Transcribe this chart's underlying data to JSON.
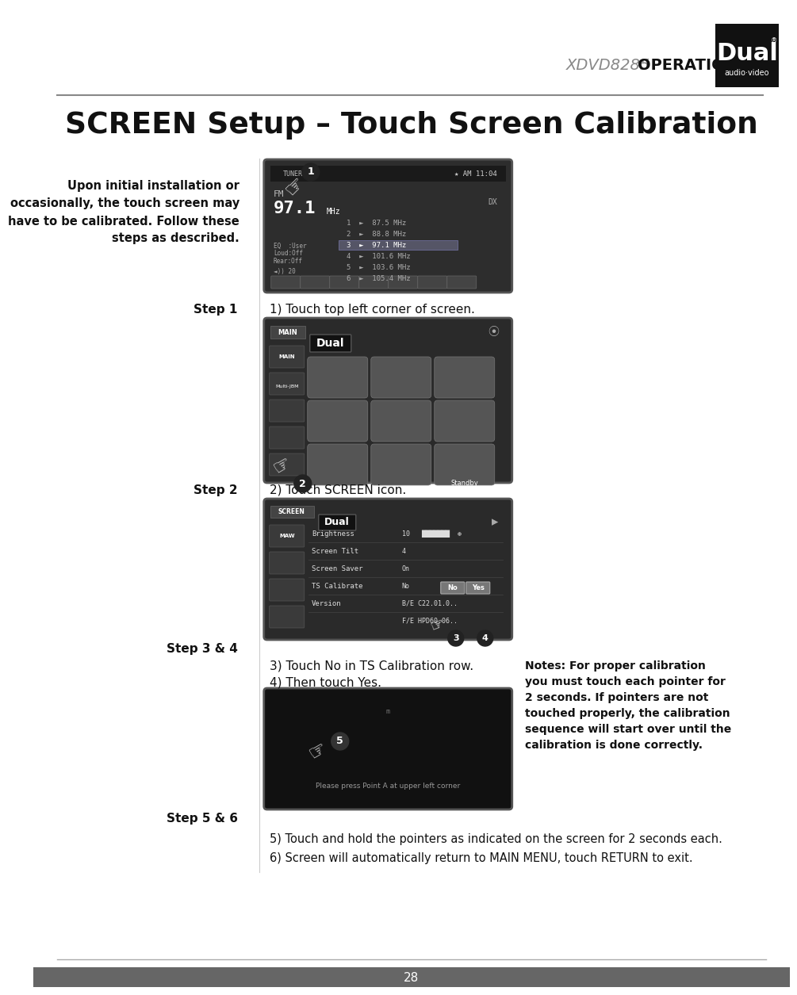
{
  "page_bg": "#ffffff",
  "header_text1": "XDVD8285",
  "header_text2": " OPERATION",
  "header_text1_color": "#888888",
  "header_text2_color": "#111111",
  "logo_bg": "#111111",
  "logo_text": "Dual",
  "logo_subtext": "audio·video",
  "title": "SCREEN Setup – Touch Screen Calibration",
  "title_color": "#111111",
  "separator_color": "#888888",
  "intro_text": "Upon initial installation or\noccasionally, the touch screen may\nhave to be calibrated. Follow these\nsteps as described.",
  "step1_label": "Step 1",
  "step1_text": "1) Touch top left corner of screen.",
  "step2_label": "Step 2",
  "step2_text": "2) Touch SCREEN icon.",
  "step34_label": "Step 3 & 4",
  "step34_text1": "3) Touch No in TS Calibration row.",
  "step34_text2": "4) Then touch Yes.",
  "step56_label": "Step 5 & 6",
  "step56_text1": "5) Touch and hold the pointers as indicated on the screen for 2 seconds each.",
  "step56_text2": "6) Screen will automatically return to MAIN MENU, touch RETURN to exit.",
  "notes_title": "Notes:",
  "notes_text": "Notes: For proper calibration\nyou must touch each pointer for\n2 seconds. If pointers are not\ntouched properly, the calibration\nsequence will start over until the\ncalibration is done correctly.",
  "page_number": "28",
  "bottom_bar_color": "#666666",
  "divider_color": "#aaaaaa"
}
